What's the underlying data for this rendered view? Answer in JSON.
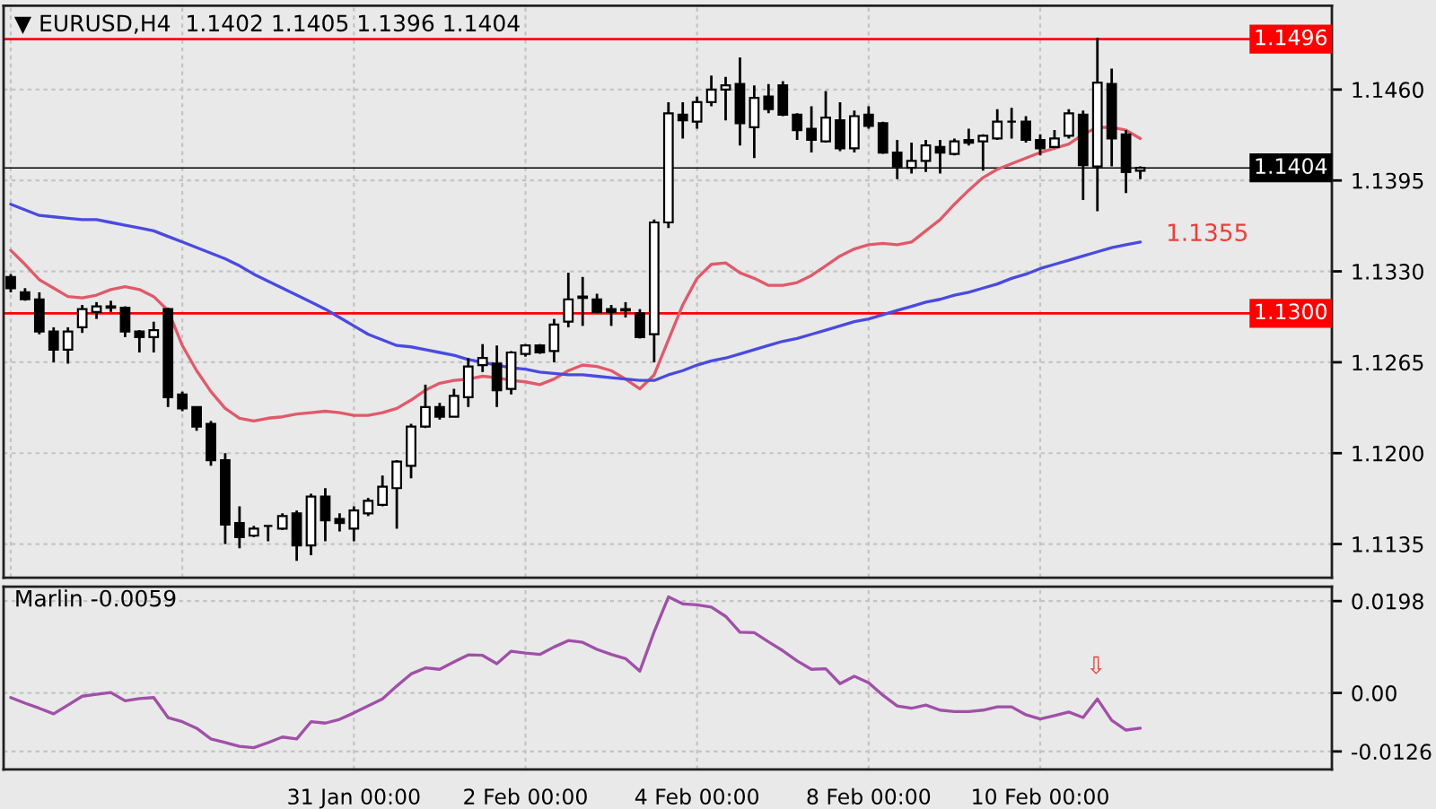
{
  "chart_data": [
    {
      "type": "candlestick",
      "title": "▼ EURUSD,H4  1.1402 1.1405 1.1396 1.1404",
      "categories": [
        null,
        null,
        null,
        null,
        null,
        null,
        null,
        null,
        null,
        null,
        null,
        null,
        null,
        null,
        null,
        null,
        null,
        null,
        null,
        null,
        null,
        null,
        null,
        null,
        null,
        null,
        null,
        null,
        null,
        null,
        null,
        null,
        null,
        null,
        null,
        null,
        null,
        null,
        null,
        null,
        null,
        null,
        null,
        null,
        null,
        null,
        null,
        null,
        null,
        null,
        null,
        null,
        null,
        null,
        null,
        null,
        null,
        null,
        null,
        null,
        null,
        null,
        null,
        null,
        null,
        null,
        null,
        null,
        null,
        null,
        null,
        null,
        null,
        null,
        null,
        null,
        null,
        null,
        null,
        null
      ],
      "ohlc": [
        [
          1.1326,
          1.1328,
          1.1315,
          1.1318
        ],
        [
          1.1315,
          1.1318,
          1.1309,
          1.131
        ],
        [
          1.131,
          1.1315,
          1.1285,
          1.1287
        ],
        [
          1.1287,
          1.129,
          1.1265,
          1.1274
        ],
        [
          1.1274,
          1.129,
          1.1264,
          1.1287
        ],
        [
          1.129,
          1.1306,
          1.1286,
          1.1303
        ],
        [
          1.1301,
          1.1308,
          1.1296,
          1.1305
        ],
        [
          1.1304,
          1.1309,
          1.1301,
          1.1305
        ],
        [
          1.1304,
          1.1305,
          1.1283,
          1.1287
        ],
        [
          1.1287,
          1.1288,
          1.1272,
          1.1283
        ],
        [
          1.1283,
          1.1294,
          1.1272,
          1.1288
        ],
        [
          1.1303,
          1.1304,
          1.1233,
          1.124
        ],
        [
          1.1242,
          1.1244,
          1.123,
          1.1232
        ],
        [
          1.1233,
          1.1233,
          1.1216,
          1.1219
        ],
        [
          1.1221,
          1.1223,
          1.1191,
          1.1195
        ],
        [
          1.1195,
          1.12,
          1.1135,
          1.1149
        ],
        [
          1.115,
          1.1162,
          1.1132,
          1.114
        ],
        [
          1.1141,
          1.1148,
          1.114,
          1.1146
        ],
        [
          1.1148,
          1.1148,
          1.1137,
          1.1148
        ],
        [
          1.1146,
          1.1157,
          1.1145,
          1.1155
        ],
        [
          1.1157,
          1.1159,
          1.1123,
          1.1134
        ],
        [
          1.1134,
          1.1171,
          1.1127,
          1.1169
        ],
        [
          1.1169,
          1.1175,
          1.1137,
          1.1152
        ],
        [
          1.1153,
          1.1157,
          1.1144,
          1.115
        ],
        [
          1.1146,
          1.1162,
          1.1137,
          1.1159
        ],
        [
          1.1157,
          1.1168,
          1.1155,
          1.1166
        ],
        [
          1.1163,
          1.1184,
          1.1162,
          1.1176
        ],
        [
          1.1175,
          1.1195,
          1.1146,
          1.1194
        ],
        [
          1.1191,
          1.1221,
          1.1182,
          1.1219
        ],
        [
          1.1219,
          1.1249,
          1.1218,
          1.1233
        ],
        [
          1.1233,
          1.1236,
          1.1224,
          1.1226
        ],
        [
          1.1226,
          1.1246,
          1.1226,
          1.1241
        ],
        [
          1.124,
          1.1268,
          1.1233,
          1.1262
        ],
        [
          1.1263,
          1.1278,
          1.1258,
          1.1268
        ],
        [
          1.1264,
          1.1277,
          1.1233,
          1.1245
        ],
        [
          1.1246,
          1.1273,
          1.1242,
          1.1272
        ],
        [
          1.1271,
          1.1278,
          1.1269,
          1.1277
        ],
        [
          1.1277,
          1.1278,
          1.1271,
          1.1272
        ],
        [
          1.1273,
          1.1296,
          1.1265,
          1.1292
        ],
        [
          1.1294,
          1.1329,
          1.129,
          1.131
        ],
        [
          1.1312,
          1.1326,
          1.1291,
          1.1311
        ],
        [
          1.131,
          1.1314,
          1.13,
          1.1301
        ],
        [
          1.1303,
          1.1306,
          1.1291,
          1.1301
        ],
        [
          1.1303,
          1.1308,
          1.1297,
          1.1302
        ],
        [
          1.13,
          1.1303,
          1.1282,
          1.1283
        ],
        [
          1.1285,
          1.1367,
          1.1265,
          1.1365
        ],
        [
          1.1365,
          1.1451,
          1.1361,
          1.1443
        ],
        [
          1.1442,
          1.1451,
          1.1425,
          1.1438
        ],
        [
          1.1437,
          1.1455,
          1.1432,
          1.1451
        ],
        [
          1.1451,
          1.147,
          1.1448,
          1.146
        ],
        [
          1.146,
          1.1469,
          1.1438,
          1.1463
        ],
        [
          1.1464,
          1.1483,
          1.142,
          1.1436
        ],
        [
          1.1433,
          1.1463,
          1.1411,
          1.1454
        ],
        [
          1.1455,
          1.1464,
          1.1443,
          1.1446
        ],
        [
          1.1463,
          1.1466,
          1.1441,
          1.1442
        ],
        [
          1.1442,
          1.1443,
          1.1424,
          1.1431
        ],
        [
          1.1432,
          1.1448,
          1.1415,
          1.1424
        ],
        [
          1.1423,
          1.1459,
          1.1422,
          1.144
        ],
        [
          1.1438,
          1.1451,
          1.1416,
          1.1418
        ],
        [
          1.1418,
          1.1445,
          1.1415,
          1.1441
        ],
        [
          1.1442,
          1.1448,
          1.1432,
          1.1434
        ],
        [
          1.1436,
          1.1437,
          1.1414,
          1.1415
        ],
        [
          1.1415,
          1.1424,
          1.1396,
          1.1405
        ],
        [
          1.1404,
          1.1422,
          1.14,
          1.1409
        ],
        [
          1.1409,
          1.1424,
          1.1401,
          1.142
        ],
        [
          1.1419,
          1.1424,
          1.14,
          1.1415
        ],
        [
          1.1414,
          1.1425,
          1.1413,
          1.1423
        ],
        [
          1.1424,
          1.1432,
          1.142,
          1.1422
        ],
        [
          1.1423,
          1.1428,
          1.1402,
          1.1427
        ],
        [
          1.1425,
          1.1446,
          1.1424,
          1.1437
        ],
        [
          1.1437,
          1.1447,
          1.1425,
          1.1437
        ],
        [
          1.1437,
          1.1441,
          1.1422,
          1.1424
        ],
        [
          1.1424,
          1.1428,
          1.1413,
          1.1418
        ],
        [
          1.1419,
          1.1431,
          1.1418,
          1.1425
        ],
        [
          1.1427,
          1.1446,
          1.1425,
          1.1443
        ],
        [
          1.1442,
          1.1445,
          1.1381,
          1.1406
        ],
        [
          1.1405,
          1.1497,
          1.1373,
          1.1465
        ],
        [
          1.1464,
          1.1475,
          1.1405,
          1.1425
        ],
        [
          1.1428,
          1.1431,
          1.1386,
          1.1401
        ],
        [
          1.1402,
          1.1405,
          1.1396,
          1.1404
        ]
      ],
      "series": [
        {
          "type": "line",
          "color": "#e05a6a",
          "values": [
            1.1345,
            1.1335,
            1.1324,
            1.1318,
            1.1312,
            1.1311,
            1.1313,
            1.1317,
            1.1319,
            1.1317,
            1.1312,
            1.1302,
            1.1277,
            1.1259,
            1.1244,
            1.1232,
            1.1225,
            1.1223,
            1.1225,
            1.1226,
            1.1228,
            1.1229,
            1.123,
            1.1229,
            1.1227,
            1.1227,
            1.1229,
            1.1232,
            1.1238,
            1.1245,
            1.125,
            1.1252,
            1.1253,
            1.1255,
            1.1254,
            1.1252,
            1.1251,
            1.1249,
            1.1253,
            1.1259,
            1.1263,
            1.1262,
            1.1259,
            1.1253,
            1.1246,
            1.1256,
            1.1281,
            1.1306,
            1.1325,
            1.1335,
            1.1336,
            1.1329,
            1.1325,
            1.132,
            1.132,
            1.1322,
            1.1327,
            1.1334,
            1.1341,
            1.1346,
            1.1349,
            1.135,
            1.1349,
            1.1351,
            1.1359,
            1.1367,
            1.1378,
            1.1388,
            1.1397,
            1.1403,
            1.1407,
            1.1411,
            1.1415,
            1.1418,
            1.1421,
            1.1428,
            1.1433,
            1.1433,
            1.1431,
            1.1425
          ]
        },
        {
          "type": "line",
          "color": "#4a4ae0",
          "values": [
            1.1378,
            1.1374,
            1.137,
            1.1369,
            1.1368,
            1.1367,
            1.1367,
            1.1365,
            1.1363,
            1.1361,
            1.1359,
            1.1355,
            1.1351,
            1.1347,
            1.1343,
            1.1339,
            1.1334,
            1.1328,
            1.1323,
            1.1318,
            1.1313,
            1.1308,
            1.1303,
            1.1297,
            1.1291,
            1.1285,
            1.1281,
            1.1277,
            1.1276,
            1.1274,
            1.1272,
            1.127,
            1.1267,
            1.1265,
            1.1263,
            1.1261,
            1.126,
            1.1258,
            1.1257,
            1.1256,
            1.1256,
            1.1255,
            1.1254,
            1.1253,
            1.1252,
            1.1252,
            1.1256,
            1.1259,
            1.1263,
            1.1266,
            1.1268,
            1.1271,
            1.1274,
            1.1277,
            1.128,
            1.1282,
            1.1285,
            1.1288,
            1.1291,
            1.1294,
            1.1296,
            1.1299,
            1.1302,
            1.1305,
            1.1308,
            1.131,
            1.1313,
            1.1315,
            1.1318,
            1.1321,
            1.1325,
            1.1328,
            1.1332,
            1.1335,
            1.1338,
            1.1341,
            1.1344,
            1.1347,
            1.1349,
            1.1351
          ]
        }
      ],
      "ylim": [
        1.1111,
        1.152
      ],
      "yticks": [
        {
          "value": 1.146,
          "label": "1.1460"
        },
        {
          "value": 1.1395,
          "label": "1.1395"
        },
        {
          "value": 1.133,
          "label": "1.1330"
        },
        {
          "value": 1.1265,
          "label": "1.1265"
        },
        {
          "value": 1.12,
          "label": "1.1200"
        },
        {
          "value": 1.1135,
          "label": "1.1135"
        }
      ],
      "tick_labels": "y",
      "grid": true,
      "ref_lines": [
        {
          "axis": "y",
          "value": 1.1496,
          "label": "1.1496",
          "color": "#ff0000"
        },
        {
          "axis": "y",
          "value": 1.13,
          "label": "1.1300",
          "color": "#ff0000"
        },
        {
          "axis": "y",
          "value": 1.1404,
          "label": "1.1404",
          "color": "#000000"
        }
      ],
      "annotations": [
        "1.1355"
      ]
    },
    {
      "type": "line",
      "title": "Marlin -0.0059",
      "categories": [
        null,
        null,
        null,
        null,
        null,
        null,
        null,
        null,
        null,
        null,
        null,
        null,
        null,
        null,
        null,
        null,
        null,
        null,
        null,
        null,
        null,
        null,
        null,
        null,
        "31 Jan 00:00",
        null,
        null,
        null,
        null,
        null,
        null,
        null,
        null,
        null,
        null,
        null,
        "2 Feb 00:00",
        null,
        null,
        null,
        null,
        null,
        null,
        null,
        null,
        null,
        null,
        null,
        "4 Feb 00:00",
        null,
        null,
        null,
        null,
        null,
        null,
        null,
        null,
        null,
        null,
        null,
        "8 Feb 00:00",
        null,
        null,
        null,
        null,
        null,
        null,
        null,
        null,
        null,
        null,
        null,
        "10 Feb 00:00",
        null,
        null,
        null,
        null,
        null,
        null,
        null
      ],
      "series": [
        {
          "color": "#a050a8",
          "values": [
            -0.001,
            -0.0022,
            -0.0033,
            -0.0045,
            -0.0026,
            -0.0007,
            -0.0003,
            0.0001,
            -0.0017,
            -0.0012,
            -0.001,
            -0.0053,
            -0.0062,
            -0.0076,
            -0.0099,
            -0.0107,
            -0.0115,
            -0.0118,
            -0.0107,
            -0.0095,
            -0.0099,
            -0.0062,
            -0.0065,
            -0.0057,
            -0.0043,
            -0.0028,
            -0.0013,
            0.0015,
            0.0041,
            0.0054,
            0.0051,
            0.0067,
            0.0082,
            0.0081,
            0.0063,
            0.009,
            0.0086,
            0.0083,
            0.0099,
            0.0113,
            0.0109,
            0.0094,
            0.0083,
            0.0074,
            0.0047,
            0.0132,
            0.0207,
            0.0192,
            0.019,
            0.0185,
            0.0165,
            0.0131,
            0.013,
            0.011,
            0.0091,
            0.0069,
            0.0051,
            0.0052,
            0.002,
            0.0036,
            0.0022,
            -0.0005,
            -0.0028,
            -0.0033,
            -0.0026,
            -0.0037,
            -0.004,
            -0.004,
            -0.0037,
            -0.003,
            -0.003,
            -0.0047,
            -0.0056,
            -0.0049,
            -0.0041,
            -0.0053,
            -0.0013,
            -0.0059,
            -0.008,
            -0.0076
          ]
        }
      ],
      "ylim": [
        -0.0165,
        0.0229
      ],
      "yticks": [
        0.0198,
        {
          "value": 0,
          "label": "0.00"
        },
        -0.0126
      ],
      "grid": true,
      "annotations": [
        "⇩"
      ]
    }
  ]
}
